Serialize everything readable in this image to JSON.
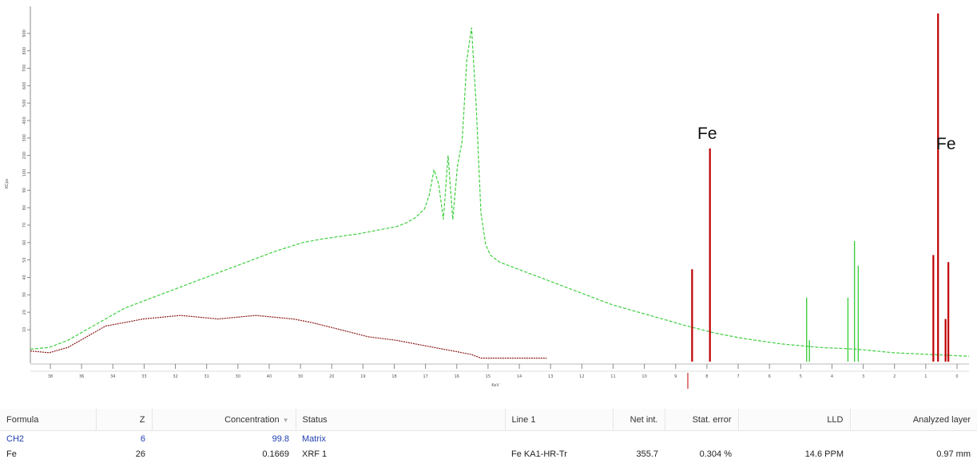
{
  "chart_data": {
    "type": "line",
    "ylabel": "KCps",
    "xlabel": "KeV",
    "y_tick_labels": [
      "10",
      "20",
      "30",
      "40",
      "50",
      "60",
      "70",
      "80",
      "90",
      "100",
      "200",
      "300",
      "400",
      "500",
      "600",
      "700",
      "800",
      "900"
    ],
    "x_tick_labels": [
      "38",
      "36",
      "34",
      "33",
      "32",
      "31",
      "30",
      "40",
      "30",
      "20",
      "19",
      "18",
      "17",
      "16",
      "15",
      "14",
      "13",
      "12",
      "11",
      "10",
      "9",
      "8",
      "7",
      "6",
      "5",
      "4",
      "3",
      "2",
      "1",
      "0"
    ],
    "annotations": [
      "Fe",
      "Fe"
    ],
    "series": [
      {
        "color": "#3fcf3f",
        "x": [
          0.0,
          0.02,
          0.04,
          0.06,
          0.08,
          0.1,
          0.14,
          0.18,
          0.22,
          0.26,
          0.29,
          0.31,
          0.35,
          0.39,
          0.4,
          0.41,
          0.42,
          0.425,
          0.43,
          0.435,
          0.44,
          0.445,
          0.45,
          0.455,
          0.46,
          0.465,
          0.47,
          0.475,
          0.48,
          0.485,
          0.49,
          0.5,
          0.52,
          0.55,
          0.58,
          0.62,
          0.66,
          0.7,
          0.73,
          0.76,
          0.8,
          0.84,
          0.88,
          0.92,
          0.96,
          1.0
        ],
        "y": [
          0.035,
          0.04,
          0.06,
          0.09,
          0.12,
          0.15,
          0.19,
          0.23,
          0.27,
          0.31,
          0.335,
          0.345,
          0.36,
          0.38,
          0.39,
          0.405,
          0.43,
          0.47,
          0.54,
          0.5,
          0.4,
          0.58,
          0.4,
          0.55,
          0.62,
          0.85,
          0.94,
          0.72,
          0.42,
          0.33,
          0.3,
          0.28,
          0.26,
          0.23,
          0.2,
          0.16,
          0.13,
          0.1,
          0.08,
          0.065,
          0.05,
          0.04,
          0.035,
          0.025,
          0.02,
          0.015
        ],
        "peaks": [
          {
            "x": 0.827,
            "y": 0.18
          },
          {
            "x": 0.871,
            "y": 0.18
          },
          {
            "x": 0.882,
            "y": 0.27
          },
          {
            "x": 0.878,
            "y": 0.34
          },
          {
            "x": 0.83,
            "y": 0.06
          }
        ]
      },
      {
        "color": "#8b1a1a",
        "x": [
          0.0,
          0.02,
          0.04,
          0.06,
          0.08,
          0.1,
          0.12,
          0.16,
          0.2,
          0.24,
          0.28,
          0.3,
          0.33,
          0.36,
          0.39,
          0.41,
          0.43,
          0.45,
          0.47,
          0.48,
          0.49,
          0.5,
          0.52,
          0.55
        ],
        "y": [
          0.03,
          0.025,
          0.04,
          0.07,
          0.1,
          0.11,
          0.12,
          0.13,
          0.12,
          0.13,
          0.12,
          0.11,
          0.09,
          0.07,
          0.06,
          0.05,
          0.04,
          0.03,
          0.02,
          0.01,
          0.01,
          0.01,
          0.01,
          0.01
        ]
      }
    ],
    "markers": [
      {
        "x": 0.705,
        "y": 0.26,
        "color": "#c00000"
      },
      {
        "x": 0.724,
        "y": 0.6,
        "color": "#c00000"
      },
      {
        "x": 0.962,
        "y": 0.3,
        "color": "#c00000"
      },
      {
        "x": 0.967,
        "y": 0.98,
        "color": "#c00000"
      },
      {
        "x": 0.975,
        "y": 0.12,
        "color": "#c00000"
      },
      {
        "x": 0.978,
        "y": 0.28,
        "color": "#c00000"
      }
    ]
  },
  "table": {
    "columns": [
      "Formula",
      "Z",
      "Concentration",
      "Status",
      "Line 1",
      "Net int.",
      "Stat. error",
      "LLD",
      "Analyzed layer"
    ],
    "rows": [
      [
        "CH2",
        "6",
        "99.8",
        "Matrix",
        "",
        "",
        "",
        "",
        ""
      ],
      [
        "Fe",
        "26",
        "0.1669",
        "XRF 1",
        "Fe KA1-HR-Tr",
        "355.7",
        "0.304 %",
        "14.6 PPM",
        "0.97 mm"
      ]
    ]
  }
}
